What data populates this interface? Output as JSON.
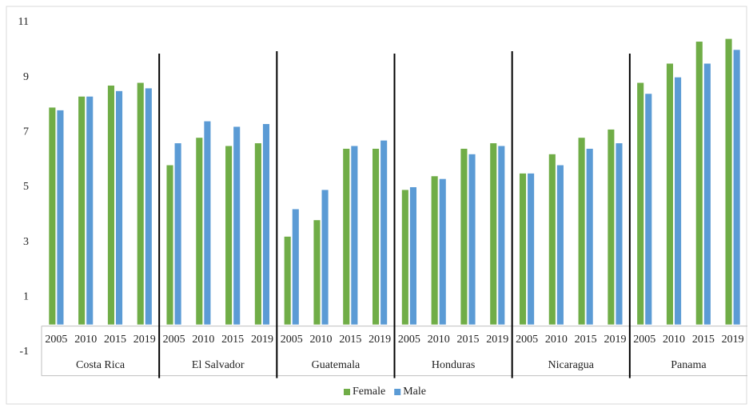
{
  "chart_data": {
    "type": "bar",
    "categories": [
      "2005",
      "2010",
      "2015",
      "2019",
      "2005",
      "2010",
      "2015",
      "2019",
      "2005",
      "2010",
      "2015",
      "2019",
      "2005",
      "2010",
      "2015",
      "2019",
      "2005",
      "2010",
      "2015",
      "2019",
      "2005",
      "2010",
      "2015",
      "2019"
    ],
    "groups": [
      "Costa Rica",
      "El Salvador",
      "Guatemala",
      "Honduras",
      "Nicaragua",
      "Panama"
    ],
    "series": [
      {
        "name": "Female",
        "color": "#70ad47",
        "values": [
          7.9,
          8.3,
          8.7,
          8.8,
          5.8,
          6.8,
          6.5,
          6.6,
          3.2,
          3.8,
          6.4,
          6.4,
          4.9,
          5.4,
          6.4,
          6.6,
          5.5,
          6.2,
          6.8,
          7.1,
          8.8,
          9.5,
          10.3,
          10.4
        ]
      },
      {
        "name": "Male",
        "color": "#5b9bd5",
        "values": [
          7.8,
          8.3,
          8.5,
          8.6,
          6.6,
          7.4,
          7.2,
          7.3,
          4.2,
          4.9,
          6.5,
          6.7,
          5.0,
          5.3,
          6.2,
          6.5,
          5.5,
          5.8,
          6.4,
          6.6,
          8.4,
          9.0,
          9.5,
          10.0
        ]
      }
    ],
    "ylim": [
      -1,
      11
    ],
    "yticks": [
      -1,
      1,
      3,
      5,
      7,
      9,
      11
    ],
    "legend": "bottom"
  }
}
